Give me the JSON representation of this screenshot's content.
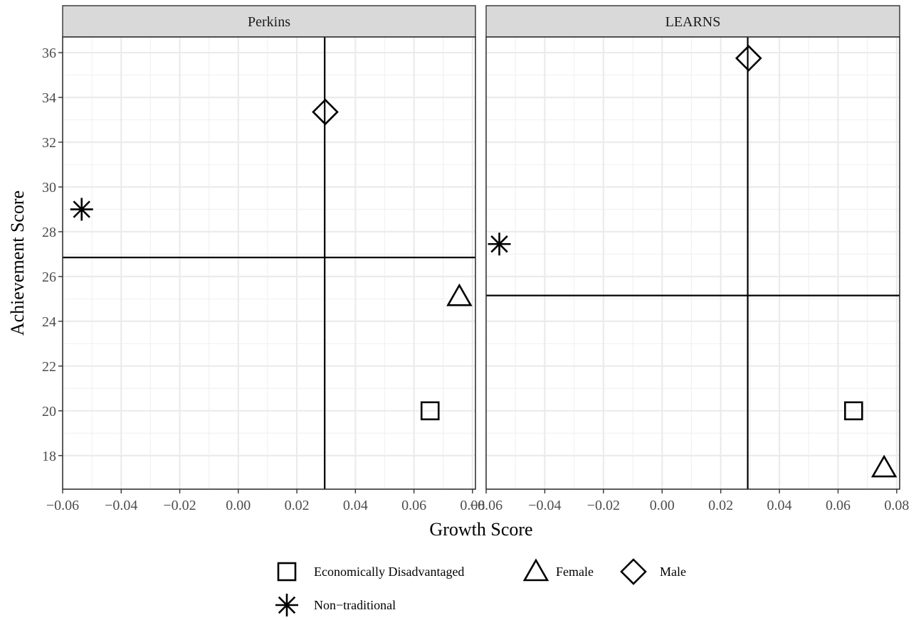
{
  "chart_data": {
    "type": "scatter",
    "xlabel": "Growth Score",
    "ylabel": "Achievement Score",
    "xlim": [
      -0.06,
      0.081
    ],
    "ylim": [
      16.5,
      36.7
    ],
    "x_ticks": [
      -0.06,
      -0.04,
      -0.02,
      0.0,
      0.02,
      0.04,
      0.06,
      0.08
    ],
    "x_tick_labels": [
      "−0.06",
      "−0.04",
      "−0.02",
      "0.00",
      "0.02",
      "0.04",
      "0.06",
      "0.08"
    ],
    "y_ticks": [
      18,
      20,
      22,
      24,
      26,
      28,
      30,
      32,
      34,
      36
    ],
    "grid": true,
    "legend_position": "bottom",
    "legend": [
      {
        "label": "Economically Disadvantaged",
        "shape": "square"
      },
      {
        "label": "Female",
        "shape": "triangle"
      },
      {
        "label": "Male",
        "shape": "diamond"
      },
      {
        "label": "Non−traditional",
        "shape": "asterisk"
      }
    ],
    "panels": [
      {
        "title": "Perkins",
        "vline_x": 0.0295,
        "hline_y": 26.85,
        "points": [
          {
            "group": "Economically Disadvantaged",
            "x": 0.0655,
            "y": 20.0
          },
          {
            "group": "Female",
            "x": 0.0755,
            "y": 25.1
          },
          {
            "group": "Male",
            "x": 0.0297,
            "y": 33.35
          },
          {
            "group": "Non−traditional",
            "x": -0.0535,
            "y": 29.0
          }
        ]
      },
      {
        "title": "LEARNS",
        "vline_x": 0.0292,
        "hline_y": 25.15,
        "points": [
          {
            "group": "Economically Disadvantaged",
            "x": 0.0653,
            "y": 20.0
          },
          {
            "group": "Female",
            "x": 0.0757,
            "y": 17.45
          },
          {
            "group": "Male",
            "x": 0.0295,
            "y": 35.75
          },
          {
            "group": "Non−traditional",
            "x": -0.0555,
            "y": 27.45
          }
        ]
      }
    ]
  }
}
